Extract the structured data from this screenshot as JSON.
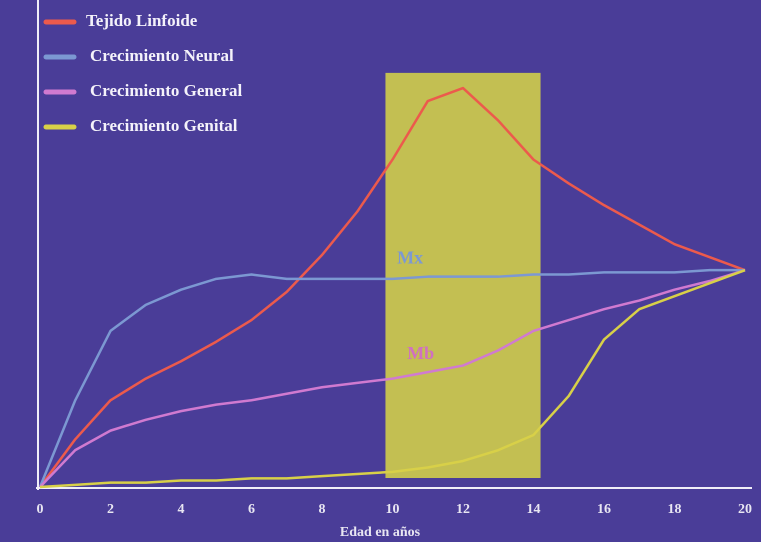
{
  "chart_data": {
    "type": "line",
    "x_label": "Edad en años",
    "x": [
      0,
      1,
      2,
      3,
      4,
      5,
      6,
      7,
      8,
      9,
      10,
      11,
      12,
      13,
      14,
      15,
      16,
      17,
      18,
      19,
      20
    ],
    "xlim": [
      0,
      20
    ],
    "xticks": [
      0,
      2,
      4,
      6,
      8,
      10,
      12,
      14,
      16,
      18,
      20
    ],
    "ylim": [
      0,
      220
    ],
    "series": [
      {
        "name": "Tejido Linfoide",
        "color": "#ec5a4c",
        "values": [
          0,
          22,
          40,
          50,
          58,
          67,
          77,
          90,
          107,
          127,
          151,
          178,
          184,
          169,
          151,
          140,
          130,
          121,
          112,
          106,
          100
        ]
      },
      {
        "name": "Crecimiento Neural",
        "color": "#7c98d2",
        "values": [
          0,
          40,
          72,
          84,
          91,
          96,
          98,
          96,
          96,
          96,
          96,
          97,
          97,
          97,
          98,
          98,
          99,
          99,
          99,
          100,
          100
        ]
      },
      {
        "name": "Crecimiento General",
        "color": "#d07ad0",
        "values": [
          0,
          17,
          26,
          31,
          35,
          38,
          40,
          43,
          46,
          48,
          50,
          53,
          56,
          63,
          72,
          77,
          82,
          86,
          91,
          95,
          100
        ]
      },
      {
        "name": "Crecimiento Genital",
        "color": "#d8d048",
        "values": [
          0,
          1,
          2,
          2,
          3,
          3,
          4,
          4,
          5,
          6,
          7,
          9,
          12,
          17,
          24,
          42,
          68,
          82,
          88,
          94,
          100
        ]
      }
    ],
    "band": {
      "x": [
        9.8,
        14.2
      ],
      "top": 191,
      "color": "#c9c64e"
    },
    "annotations": [
      {
        "text": "Mx",
        "x": 10.5,
        "y": 105,
        "color": "#7c98d2"
      },
      {
        "text": "Mb",
        "x": 10.8,
        "y": 61,
        "color": "#d070c0"
      }
    ]
  }
}
